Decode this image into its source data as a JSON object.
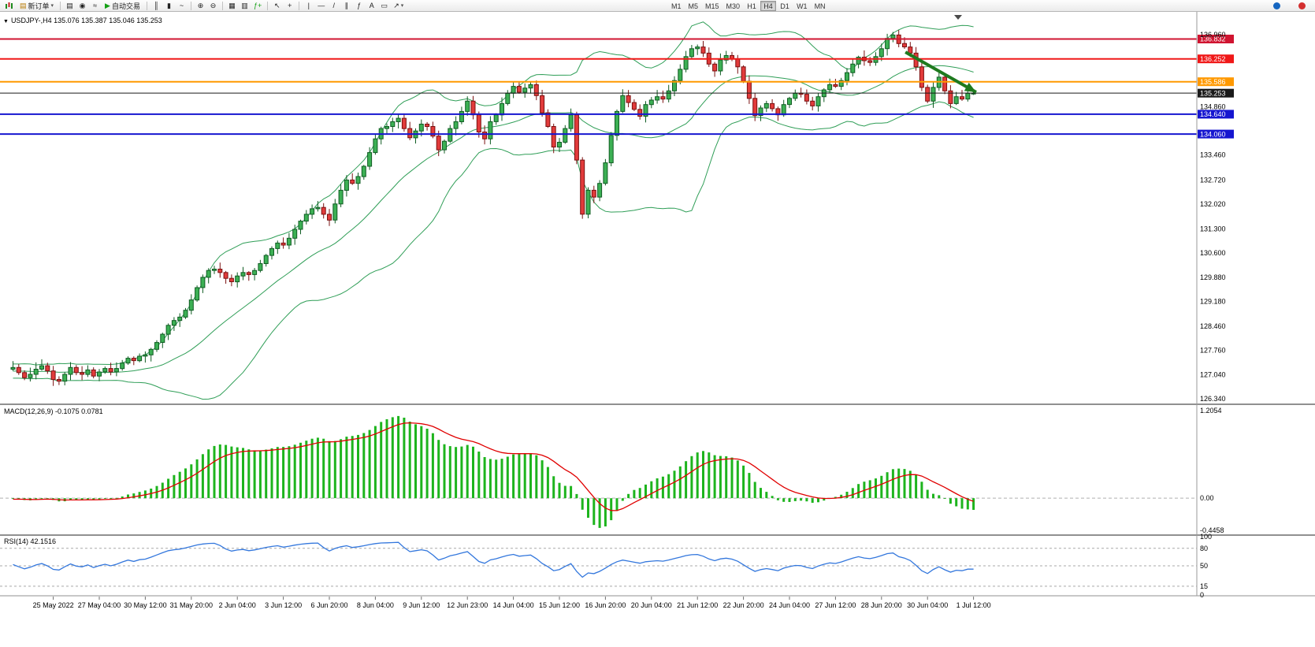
{
  "toolbar": {
    "new_order_label": "新订单",
    "autotrading_label": "自动交易",
    "timeframes": [
      "M1",
      "M5",
      "M15",
      "M30",
      "H1",
      "H4",
      "D1",
      "W1",
      "MN"
    ],
    "active_timeframe": "H4"
  },
  "chart": {
    "info": "USDJPY-,H4 135.076 135.387 135.046 135.253",
    "symbol": "USDJPY-",
    "period": "H4"
  },
  "macd": {
    "label": "MACD(12,26,9)",
    "values": "-0.1075 0.0781"
  },
  "rsi": {
    "label": "RSI(14)",
    "value": "42.1516"
  },
  "chart_data": {
    "type": "candlestick",
    "symbol": "USDJPY-",
    "timeframe": "H4",
    "last_ohlc": {
      "open": 135.076,
      "high": 135.387,
      "low": 135.046,
      "close": 135.253
    },
    "ylim": [
      126.2,
      137.6
    ],
    "price_axis_ticks": [
      136.96,
      134.86,
      133.46,
      132.72,
      132.02,
      131.3,
      130.6,
      129.88,
      129.18,
      128.46,
      127.76,
      127.04,
      126.34
    ],
    "levels": [
      {
        "price": 136.832,
        "label": "136.832",
        "color": "#d01430",
        "kind": "resistance"
      },
      {
        "price": 136.252,
        "label": "136.252",
        "color": "#f01818",
        "kind": "resistance"
      },
      {
        "price": 135.586,
        "label": "135.586",
        "color": "#ff9900",
        "kind": "pivot"
      },
      {
        "price": 135.253,
        "label": "135.253",
        "color": "#1a1a1a",
        "kind": "current-price"
      },
      {
        "price": 134.64,
        "label": "134.640",
        "color": "#1616d0",
        "kind": "support"
      },
      {
        "price": 134.06,
        "label": "134.060",
        "color": "#1616d0",
        "kind": "support"
      }
    ],
    "x_labels": [
      "25 May 2022",
      "27 May 04:00",
      "30 May 12:00",
      "31 May 20:00",
      "2 Jun 04:00",
      "3 Jun 12:00",
      "6 Jun 20:00",
      "8 Jun 04:00",
      "9 Jun 12:00",
      "12 Jun 23:00",
      "14 Jun 04:00",
      "15 Jun 12:00",
      "16 Jun 20:00",
      "20 Jun 04:00",
      "21 Jun 12:00",
      "22 Jun 20:00",
      "24 Jun 04:00",
      "27 Jun 12:00",
      "28 Jun 20:00",
      "30 Jun 04:00",
      "1 Jul 12:00"
    ],
    "bars_per_label": 8,
    "first_label_bar": 7,
    "colors": {
      "bull_fill": "#3cb054",
      "bull_stroke": "#0f5c22",
      "bear_fill": "#e23b3b",
      "bear_stroke": "#7a1010",
      "bollinger": "#2f9e57",
      "macd_histogram": "#1db41d",
      "macd_signal": "#e00000",
      "rsi_line": "#3377dd"
    },
    "prehistory_closes": [
      127.2,
      127.35,
      127.15,
      127.0,
      127.25,
      127.4,
      127.2,
      127.05,
      127.3,
      127.45,
      127.25,
      127.1,
      127.0,
      127.2,
      127.35,
      127.15,
      127.05,
      127.25,
      127.1,
      126.95,
      127.15,
      127.3,
      127.1,
      127.0,
      127.2,
      127.1,
      127.25,
      127.15,
      127.05,
      127.2
    ],
    "closes": [
      127.25,
      127.1,
      126.95,
      127.05,
      127.2,
      127.3,
      127.15,
      126.9,
      126.85,
      127.05,
      127.25,
      127.1,
      127.05,
      127.18,
      127.0,
      127.12,
      127.22,
      127.12,
      127.22,
      127.38,
      127.52,
      127.45,
      127.58,
      127.62,
      127.78,
      127.98,
      128.22,
      128.48,
      128.62,
      128.72,
      128.92,
      129.22,
      129.58,
      129.88,
      130.08,
      130.12,
      130.02,
      129.85,
      129.75,
      129.92,
      130.02,
      129.96,
      130.08,
      130.28,
      130.52,
      130.72,
      130.88,
      130.82,
      131.02,
      131.28,
      131.52,
      131.72,
      131.88,
      131.92,
      131.72,
      131.55,
      132.02,
      132.42,
      132.72,
      132.62,
      132.82,
      133.12,
      133.52,
      133.92,
      134.22,
      134.28,
      134.42,
      134.52,
      134.22,
      133.95,
      134.15,
      134.35,
      134.28,
      134.0,
      133.6,
      133.85,
      134.22,
      134.42,
      134.72,
      135.02,
      134.62,
      134.12,
      133.92,
      134.42,
      134.62,
      134.95,
      135.25,
      135.45,
      135.28,
      135.4,
      135.5,
      135.18,
      134.68,
      134.28,
      133.68,
      133.82,
      134.22,
      134.62,
      133.3,
      131.72,
      132.42,
      132.22,
      132.62,
      133.22,
      134.02,
      134.72,
      135.18,
      134.98,
      134.78,
      134.58,
      134.92,
      135.05,
      135.15,
      135.08,
      135.32,
      135.62,
      135.95,
      136.32,
      136.55,
      136.6,
      136.42,
      136.1,
      135.9,
      136.22,
      136.35,
      136.25,
      136.02,
      135.6,
      135.1,
      134.6,
      134.82,
      134.95,
      134.8,
      134.62,
      134.92,
      135.1,
      135.25,
      135.22,
      135.02,
      134.88,
      135.15,
      135.35,
      135.5,
      135.45,
      135.62,
      135.85,
      136.1,
      136.3,
      136.2,
      136.15,
      136.32,
      136.55,
      136.85,
      136.95,
      136.7,
      136.6,
      136.42,
      136.02,
      135.42,
      135.02,
      135.42,
      135.72,
      135.32,
      134.95,
      135.15,
      135.08,
      135.25,
      135.25
    ],
    "indicators": {
      "bollinger": {
        "period": 20,
        "deviation": 2
      },
      "macd": {
        "fast": 12,
        "slow": 26,
        "signal": 9,
        "current_main": -0.1075,
        "current_signal": 0.0781,
        "axis": [
          "1.2054",
          "0.00",
          "-0.4458"
        ],
        "axis_max": 1.2054,
        "axis_min": -0.4458
      },
      "rsi": {
        "period": 14,
        "current": 42.1516,
        "axis": [
          "100",
          "80",
          "50",
          "15",
          "0"
        ],
        "dashed_levels": [
          80,
          50,
          15
        ]
      }
    },
    "annotations": [
      {
        "type": "arrow",
        "color": "#1e7a1e",
        "x1_bar": 155.5,
        "y1_price": 136.45,
        "x2_bar": 167.8,
        "y2_price": 135.28
      }
    ]
  },
  "time_axis": [
    "25 May 2022",
    "27 May 04:00",
    "30 May 12:00",
    "31 May 20:00",
    "2 Jun 04:00",
    "3 Jun 12:00",
    "6 Jun 20:00",
    "8 Jun 04:00",
    "9 Jun 12:00",
    "12 Jun 23:00",
    "14 Jun 04:00",
    "15 Jun 12:00",
    "16 Jun 20:00",
    "20 Jun 04:00",
    "21 Jun 12:00",
    "22 Jun 20:00",
    "24 Jun 04:00",
    "27 Jun 12:00",
    "28 Jun 20:00",
    "30 Jun 04:00",
    "1 Jul 12:00"
  ]
}
